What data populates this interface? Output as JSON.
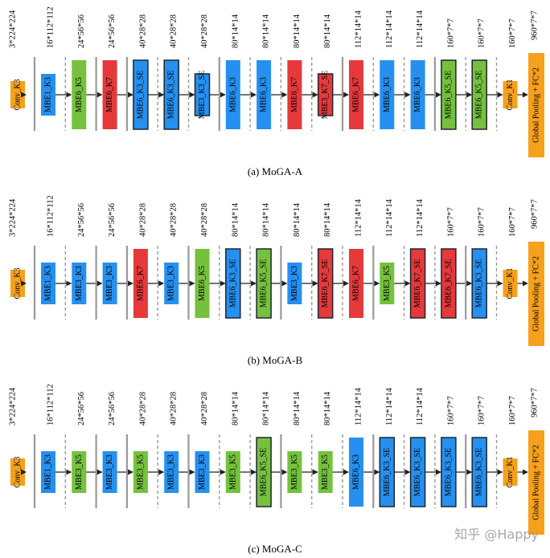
{
  "colors": {
    "conv": "#f6a01c",
    "mbe_blue": "#2590f0",
    "mbe_green": "#75c13d",
    "mbe_red": "#e5393b",
    "border_dark": "#1d2630",
    "arrow": "#222222",
    "separator": "#9a9a9a"
  },
  "watermark": "知乎 @Happy",
  "diagrams": [
    {
      "caption": "(a)  MoGA-A",
      "input_label": "3*224*224",
      "head_label": "960*7*7",
      "head_block": "Global Pooling + FC*2",
      "stem": {
        "label": "Conv_K3",
        "dims": "16*112*112"
      },
      "tail": {
        "label": "Conv_K1",
        "dims": "160*7*7"
      },
      "separators": [
        "solid",
        "dashed",
        "solid",
        "solid",
        "dashed",
        "dashed",
        "solid",
        "dashed",
        "dashed",
        "dashed",
        "solid",
        "dashed",
        "dashed",
        "solid",
        "dashed"
      ],
      "blocks": [
        {
          "label": "MBE1_K3",
          "color": "blue",
          "size": "small",
          "border": false,
          "dims": "16*112*112"
        },
        {
          "label": "MBE6_K5",
          "color": "green",
          "size": "large",
          "border": false,
          "dims": "24*56*56"
        },
        {
          "label": "MBE6_K7",
          "color": "red",
          "size": "large",
          "border": false,
          "dims": "24*56*56"
        },
        {
          "label": "MBE6_K3_SE",
          "color": "blue",
          "size": "large",
          "border": true,
          "dims": "40*28*28"
        },
        {
          "label": "MBE6_K3_SE",
          "color": "blue",
          "size": "large",
          "border": true,
          "dims": "40*28*28"
        },
        {
          "label": "MBE3_K3_SE",
          "color": "blue",
          "size": "small",
          "border": true,
          "dims": "40*28*28"
        },
        {
          "label": "MBE6_K3",
          "color": "blue",
          "size": "large",
          "border": false,
          "dims": "80*14*14"
        },
        {
          "label": "MBE6_K3",
          "color": "blue",
          "size": "large",
          "border": false,
          "dims": "80*14*14"
        },
        {
          "label": "MBE6_K7",
          "color": "red",
          "size": "large",
          "border": false,
          "dims": "80*14*14"
        },
        {
          "label": "MBE3_K7_SE",
          "color": "red",
          "size": "small",
          "border": true,
          "dims": "80*14*14"
        },
        {
          "label": "MBE6_K7",
          "color": "red",
          "size": "large",
          "border": false,
          "dims": "112*14*14"
        },
        {
          "label": "MBE6_K3",
          "color": "blue",
          "size": "large",
          "border": false,
          "dims": "112*14*14"
        },
        {
          "label": "MBE6_K3",
          "color": "blue",
          "size": "large",
          "border": false,
          "dims": "112*14*14"
        },
        {
          "label": "MBE6_K5_SE",
          "color": "green",
          "size": "large",
          "border": true,
          "dims": "160*7*7"
        },
        {
          "label": "MBE6_K5_SE",
          "color": "green",
          "size": "large",
          "border": true,
          "dims": "160*7*7"
        }
      ]
    },
    {
      "caption": "(b)  MoGA-B",
      "input_label": "3*224*224",
      "head_label": "960*7*7",
      "head_block": "Global Pooling + FC*2",
      "stem": {
        "label": "Conv_K3",
        "dims": "16*112*112"
      },
      "tail": {
        "label": "Conv_K1",
        "dims": "160*7*7"
      },
      "separators": [
        "solid",
        "dashed",
        "solid",
        "solid",
        "dashed",
        "solid",
        "dashed",
        "dashed",
        "solid",
        "dashed",
        "dashed",
        "solid",
        "dashed",
        "dashed",
        "solid"
      ],
      "blocks": [
        {
          "label": "MBE1_K3",
          "color": "blue",
          "size": "small",
          "border": false,
          "dims": "16*112*112"
        },
        {
          "label": "MBE3_K3",
          "color": "blue",
          "size": "small",
          "border": false,
          "dims": "24*56*56"
        },
        {
          "label": "MBE3_K3",
          "color": "blue",
          "size": "small",
          "border": false,
          "dims": "24*56*56"
        },
        {
          "label": "MBE6_K7",
          "color": "red",
          "size": "large",
          "border": false,
          "dims": "40*28*28"
        },
        {
          "label": "MBE3_K3",
          "color": "blue",
          "size": "small",
          "border": false,
          "dims": "40*28*28"
        },
        {
          "label": "MBE6_K5",
          "color": "green",
          "size": "large",
          "border": false,
          "dims": "40*28*28"
        },
        {
          "label": "MBE6_K3_SE",
          "color": "blue",
          "size": "large",
          "border": true,
          "dims": "80*14*14"
        },
        {
          "label": "MBE6_K5_SE",
          "color": "green",
          "size": "large",
          "border": true,
          "dims": "80*14*14"
        },
        {
          "label": "MBE3_K3",
          "color": "blue",
          "size": "small",
          "border": false,
          "dims": "80*14*14"
        },
        {
          "label": "MBE6_K7_SE",
          "color": "red",
          "size": "large",
          "border": true,
          "dims": "80*14*14"
        },
        {
          "label": "MBE6_K7",
          "color": "red",
          "size": "large",
          "border": false,
          "dims": "112*14*14"
        },
        {
          "label": "MBE3_K5",
          "color": "green",
          "size": "small",
          "border": false,
          "dims": "112*14*14"
        },
        {
          "label": "MBE6_K7_SE",
          "color": "red",
          "size": "large",
          "border": true,
          "dims": "112*14*14"
        },
        {
          "label": "MBE6_K7_SE",
          "color": "red",
          "size": "large",
          "border": true,
          "dims": "160*7*7"
        },
        {
          "label": "MBE6_K3_SE",
          "color": "blue",
          "size": "large",
          "border": true,
          "dims": "160*7*7"
        }
      ]
    },
    {
      "caption": "(c)  MoGA-C",
      "input_label": "3*224*224",
      "head_label": "960*7*7",
      "head_block": "Global Pooling + FC*2",
      "stem": {
        "label": "Conv_K3",
        "dims": "16*112*112"
      },
      "tail": {
        "label": "Conv_K1",
        "dims": "160*7*7"
      },
      "separators": [
        "solid",
        "dashed",
        "solid",
        "solid",
        "dashed",
        "solid",
        "dashed",
        "dashed",
        "solid",
        "dashed",
        "dashed",
        "solid",
        "dashed",
        "dashed",
        "solid"
      ],
      "blocks": [
        {
          "label": "MBE1_K3",
          "color": "blue",
          "size": "small",
          "border": false,
          "dims": "16*112*112"
        },
        {
          "label": "MBE3_K5",
          "color": "green",
          "size": "small",
          "border": false,
          "dims": "24*56*56"
        },
        {
          "label": "MBE3_K3",
          "color": "blue",
          "size": "small",
          "border": false,
          "dims": "24*56*56"
        },
        {
          "label": "MBE3_K5",
          "color": "green",
          "size": "small",
          "border": false,
          "dims": "40*28*28"
        },
        {
          "label": "MBE3_K3",
          "color": "blue",
          "size": "small",
          "border": false,
          "dims": "40*28*28"
        },
        {
          "label": "MBE3_K3",
          "color": "blue",
          "size": "small",
          "border": false,
          "dims": "40*28*28"
        },
        {
          "label": "MBE3_K5",
          "color": "green",
          "size": "small",
          "border": false,
          "dims": "80*14*14"
        },
        {
          "label": "MBE6_K5_SE",
          "color": "green",
          "size": "large",
          "border": true,
          "dims": "80*14*14"
        },
        {
          "label": "MBE3_K5",
          "color": "green",
          "size": "small",
          "border": false,
          "dims": "80*14*14"
        },
        {
          "label": "MBE3_K5",
          "color": "green",
          "size": "small",
          "border": false,
          "dims": "80*14*14"
        },
        {
          "label": "MBE6_K3",
          "color": "blue",
          "size": "large",
          "border": false,
          "dims": "112*14*14"
        },
        {
          "label": "MBE6_K3_SE",
          "color": "blue",
          "size": "large",
          "border": true,
          "dims": "112*14*14"
        },
        {
          "label": "MBE6_K3_SE",
          "color": "blue",
          "size": "large",
          "border": true,
          "dims": "112*14*14"
        },
        {
          "label": "MBE6_K3_SE",
          "color": "blue",
          "size": "large",
          "border": true,
          "dims": "160*7*7"
        },
        {
          "label": "MBE6_K3_SE",
          "color": "blue",
          "size": "large",
          "border": true,
          "dims": "160*7*7"
        }
      ]
    }
  ]
}
